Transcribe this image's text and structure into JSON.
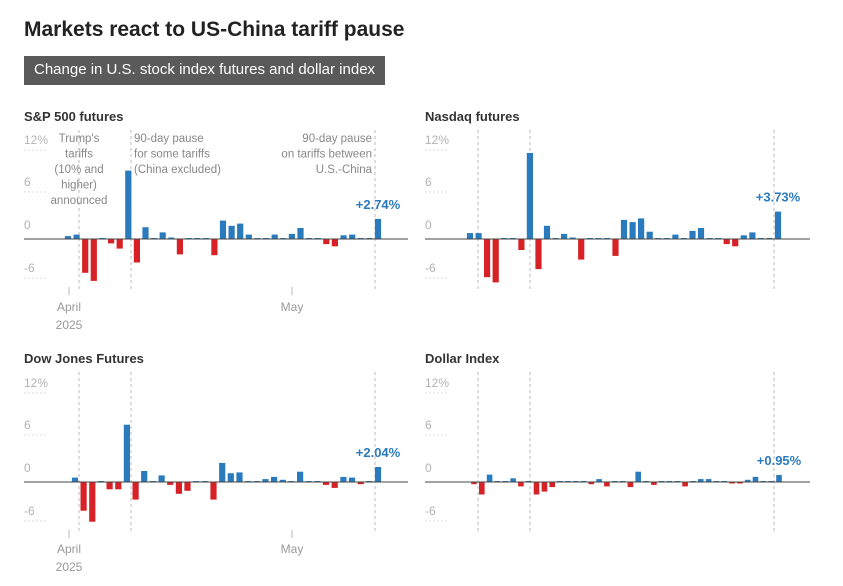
{
  "title": "Markets react to US-China tariff pause",
  "subtitle": "Change in U.S. stock index futures and dollar index",
  "colors": {
    "positive": "#2a7bbd",
    "negative": "#d62226",
    "zero_line": "#444444",
    "marker_line": "#bbbbbb"
  },
  "annotations": [
    {
      "text": [
        "Trump's",
        "tariffs",
        "(10% and",
        "higher)",
        "announced"
      ]
    },
    {
      "text": [
        "90-day pause",
        "for some tariffs",
        "(China excluded)"
      ]
    },
    {
      "text": [
        "90-day pause",
        "on tariffs between",
        "U.S.-China"
      ]
    }
  ],
  "chart_data": [
    {
      "type": "bar",
      "title": "S&P 500 futures",
      "y_ticks": [
        "12%",
        "6",
        "0",
        "-6"
      ],
      "ylim": [
        -7,
        13
      ],
      "x_tick_labels": [
        [
          "April",
          "2025"
        ],
        [
          "May"
        ]
      ],
      "last_label": "+2.74%",
      "values": [
        0.4,
        0.6,
        -4.6,
        -5.7,
        0.1,
        -0.6,
        -1.3,
        9.3,
        -3.2,
        1.6,
        0.1,
        0.9,
        0.2,
        -2.1,
        0.1,
        0.1,
        0.1,
        -2.2,
        2.5,
        1.8,
        2.1,
        0.6,
        0.1,
        0.1,
        0.6,
        0.1,
        0.7,
        1.5,
        0.1,
        0.1,
        -0.7,
        -1.0,
        0.5,
        0.6,
        0.1,
        0.1,
        2.74
      ]
    },
    {
      "type": "bar",
      "title": "Nasdaq futures",
      "y_ticks": [
        "12%",
        "6",
        "0",
        "-6"
      ],
      "ylim": [
        -7,
        13
      ],
      "x_tick_labels": [],
      "last_label": "+3.73%",
      "values": [
        0.8,
        0.8,
        -5.2,
        -5.9,
        0.1,
        0.1,
        -1.5,
        11.7,
        -4.1,
        1.8,
        0.1,
        0.7,
        0.2,
        -2.8,
        0.1,
        0.1,
        0.1,
        -2.3,
        2.6,
        2.3,
        2.8,
        1.0,
        0.1,
        0.1,
        0.6,
        0.1,
        1.1,
        1.5,
        0.1,
        0.1,
        -0.7,
        -1.0,
        0.5,
        0.9,
        0.1,
        0.1,
        3.73
      ]
    },
    {
      "type": "bar",
      "title": "Dow Jones Futures",
      "y_ticks": [
        "12%",
        "6",
        "0",
        "-6"
      ],
      "ylim": [
        -7,
        13
      ],
      "x_tick_labels": [
        [
          "April",
          "2025"
        ],
        [
          "May"
        ]
      ],
      "last_label": "+2.04%",
      "values": [
        0.6,
        -3.9,
        -5.4,
        0.1,
        -1.0,
        -1.0,
        7.8,
        -2.4,
        1.5,
        0.1,
        0.9,
        -0.4,
        -1.6,
        -1.2,
        0.1,
        0.1,
        -2.4,
        2.6,
        1.2,
        1.3,
        0.1,
        0.1,
        0.4,
        0.7,
        0.3,
        0.1,
        1.4,
        0.1,
        0.1,
        -0.4,
        -0.8,
        0.7,
        0.6,
        -0.3,
        0.1,
        2.04
      ]
    },
    {
      "type": "bar",
      "title": "Dollar Index",
      "y_ticks": [
        "12%",
        "6",
        "0",
        "-6"
      ],
      "ylim": [
        -7,
        13
      ],
      "x_tick_labels": [],
      "last_label": "+0.95%",
      "values": [
        -0.3,
        -1.7,
        1.0,
        0.1,
        0.1,
        0.5,
        -0.6,
        0.1,
        -1.7,
        -1.3,
        -0.7,
        0.1,
        0.1,
        0.1,
        0.1,
        -0.3,
        0.4,
        -0.6,
        0.1,
        0.1,
        -0.7,
        1.4,
        0.1,
        -0.4,
        0.1,
        0.1,
        0.1,
        -0.6,
        0.1,
        0.4,
        0.4,
        0.1,
        0.1,
        -0.2,
        -0.2,
        0.3,
        0.7,
        0.1,
        0.1,
        0.95
      ]
    }
  ]
}
